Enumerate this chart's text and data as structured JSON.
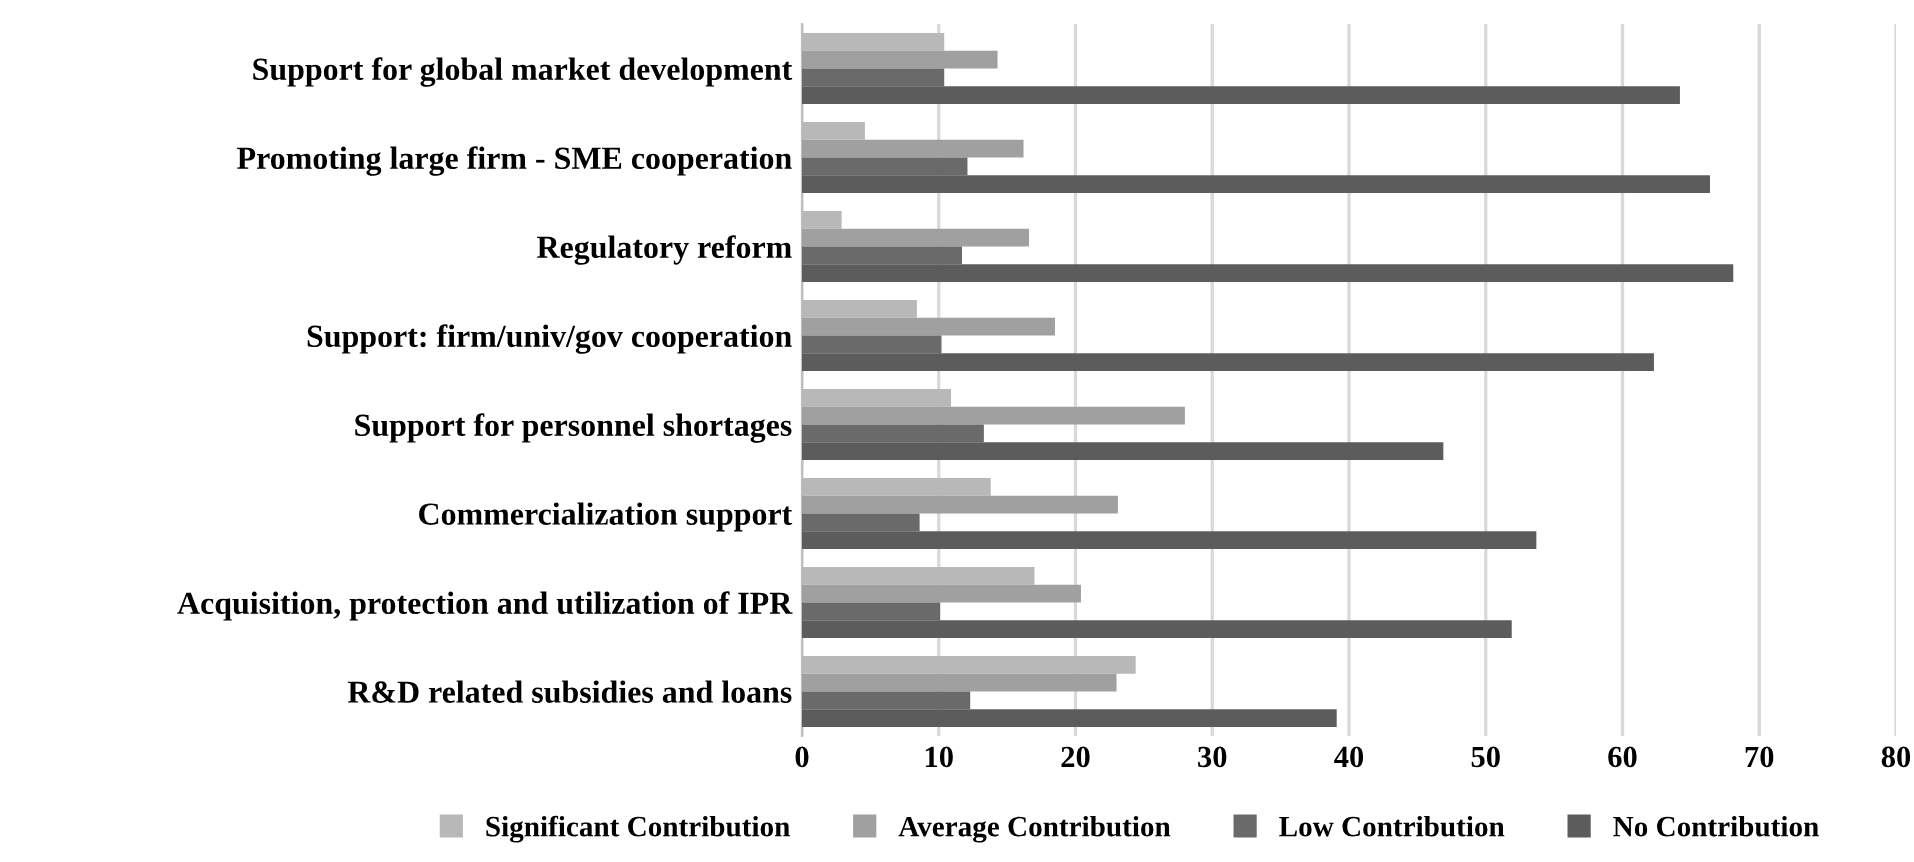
{
  "chart_data": {
    "type": "bar",
    "orientation": "horizontal",
    "categories": [
      "Support for global market development",
      "Promoting large firm - SME cooperation",
      "Regulatory reform",
      "Support: firm/univ/gov cooperation",
      "Support for personnel shortages",
      "Commercialization support",
      "Acquisition, protection and utilization of IPR",
      "R&D related subsidies and loans"
    ],
    "series": [
      {
        "name": "Significant Contribution",
        "color": "#b8b8b8",
        "values": [
          10.4,
          4.6,
          2.9,
          8.4,
          10.9,
          13.8,
          17.0,
          24.4
        ]
      },
      {
        "name": "Average Contribution",
        "color": "#a0a0a0",
        "values": [
          14.3,
          16.2,
          16.6,
          18.5,
          28.0,
          23.1,
          20.4,
          23.0
        ]
      },
      {
        "name": "Low Contribution",
        "color": "#6a6a6a",
        "values": [
          10.4,
          12.1,
          11.7,
          10.2,
          13.3,
          8.6,
          10.1,
          12.3
        ]
      },
      {
        "name": "No Contribution",
        "color": "#5c5c5c",
        "values": [
          64.2,
          66.4,
          68.1,
          62.3,
          46.9,
          53.7,
          51.9,
          39.1
        ]
      }
    ],
    "xlim": [
      0,
      80
    ],
    "xticks": [
      0,
      10,
      20,
      30,
      40,
      50,
      60,
      70,
      80
    ],
    "grid": "x",
    "legend": "bottom"
  }
}
